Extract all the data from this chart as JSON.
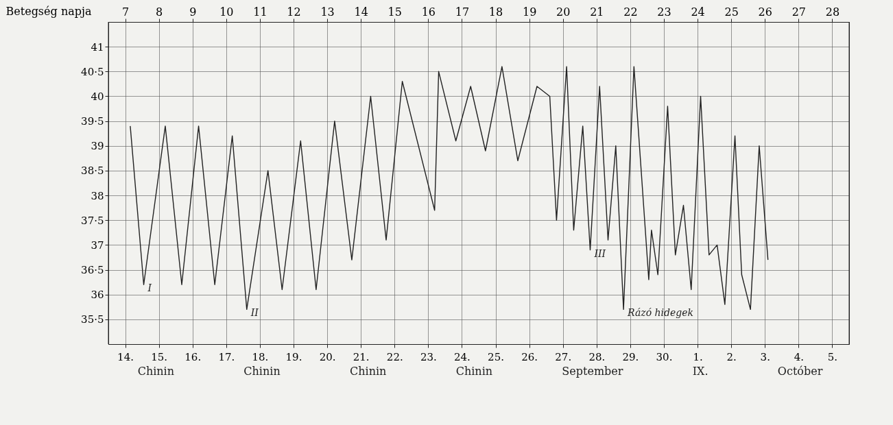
{
  "chart_data": {
    "type": "line",
    "xlabel": "Betegség napja",
    "x": [
      7.15,
      7.55,
      8.19,
      8.68,
      9.18,
      9.66,
      10.18,
      10.61,
      11.24,
      11.66,
      12.21,
      12.67,
      13.22,
      13.73,
      14.29,
      14.75,
      15.23,
      16.19,
      16.31,
      16.82,
      17.26,
      17.7,
      18.19,
      18.66,
      19.23,
      19.61,
      19.81,
      20.11,
      20.32,
      20.59,
      20.81,
      21.09,
      21.34,
      21.57,
      21.8,
      22.11,
      22.55,
      22.63,
      22.82,
      23.11,
      23.34,
      23.58,
      23.81,
      24.09,
      24.34,
      24.58,
      24.81,
      25.11,
      25.31,
      25.57,
      25.83,
      26.09
    ],
    "series": [
      {
        "color": "#222222",
        "values": [
          39.4,
          36.2,
          39.4,
          36.2,
          39.4,
          36.2,
          39.2,
          35.7,
          38.5,
          36.1,
          39.1,
          36.1,
          39.5,
          36.7,
          40.0,
          37.1,
          40.3,
          37.7,
          40.5,
          39.1,
          40.2,
          38.9,
          40.6,
          38.7,
          40.2,
          40.0,
          37.5,
          40.6,
          37.3,
          39.4,
          36.9,
          40.2,
          37.1,
          39.0,
          35.7,
          40.6,
          36.3,
          37.3,
          36.4,
          39.8,
          36.8,
          37.8,
          36.1,
          40.0,
          36.8,
          37.0,
          35.8,
          39.2,
          36.4,
          35.7,
          39.0,
          36.7
        ]
      }
    ],
    "xlim": [
      6.5,
      28.5
    ],
    "xticks": [
      7,
      8,
      9,
      10,
      11,
      12,
      13,
      14,
      15,
      16,
      17,
      18,
      19,
      20,
      21,
      22,
      23,
      24,
      25,
      26,
      27,
      28
    ],
    "x2lim": [
      "--09-13T12:00",
      "--10-05T12:00"
    ],
    "x2ticks": [
      {
        "value": "--09-14",
        "label": "14."
      },
      {
        "value": "--09-15",
        "label": "15."
      },
      {
        "value": "--09-16",
        "label": "16."
      },
      {
        "value": "--09-17",
        "label": "17."
      },
      {
        "value": "--09-18",
        "label": "18."
      },
      {
        "value": "--09-19",
        "label": "19."
      },
      {
        "value": "--09-20",
        "label": "20."
      },
      {
        "value": "--09-21",
        "label": "21."
      },
      {
        "value": "--09-22",
        "label": "22."
      },
      {
        "value": "--09-23",
        "label": "23."
      },
      {
        "value": "--09-24",
        "label": "24."
      },
      {
        "value": "--09-25",
        "label": "25."
      },
      {
        "value": "--09-26",
        "label": "26."
      },
      {
        "value": "--09-27",
        "label": "27."
      },
      {
        "value": "--09-28",
        "label": "28."
      },
      {
        "value": "--09-29",
        "label": "29."
      },
      {
        "value": "--09-30",
        "label": "30."
      },
      {
        "value": "--10-01",
        "label": "1."
      },
      {
        "value": "--10-02",
        "label": "2."
      },
      {
        "value": "--10-03",
        "label": "3."
      },
      {
        "value": "--10-04",
        "label": "4."
      },
      {
        "value": "--10-05",
        "label": "5."
      }
    ],
    "ylim": [
      35,
      41.5
    ],
    "yticks": [
      {
        "value": 35.5,
        "label": "35·5"
      },
      36,
      {
        "value": 36.5,
        "label": "36·5"
      },
      37,
      {
        "value": 37.5,
        "label": "37·5"
      },
      38,
      {
        "value": 38.5,
        "label": "38·5"
      },
      39,
      {
        "value": 39.5,
        "label": "39·5"
      },
      40,
      {
        "value": 40.5,
        "label": "40·5"
      },
      41
    ],
    "grid": true,
    "annotations": [
      {
        "text": "I",
        "x": 7.55,
        "y": 36.2
      },
      {
        "text": "II",
        "x": 10.61,
        "y": 35.7
      },
      {
        "text": "III",
        "x": 20.81,
        "y": 36.9
      },
      {
        "text": "Rázó hidegek",
        "x": 21.8,
        "y": 35.7
      },
      "Chinin",
      "Chinin",
      "Chinin",
      "Chinin",
      "September",
      "IX.",
      "Octóber"
    ]
  }
}
